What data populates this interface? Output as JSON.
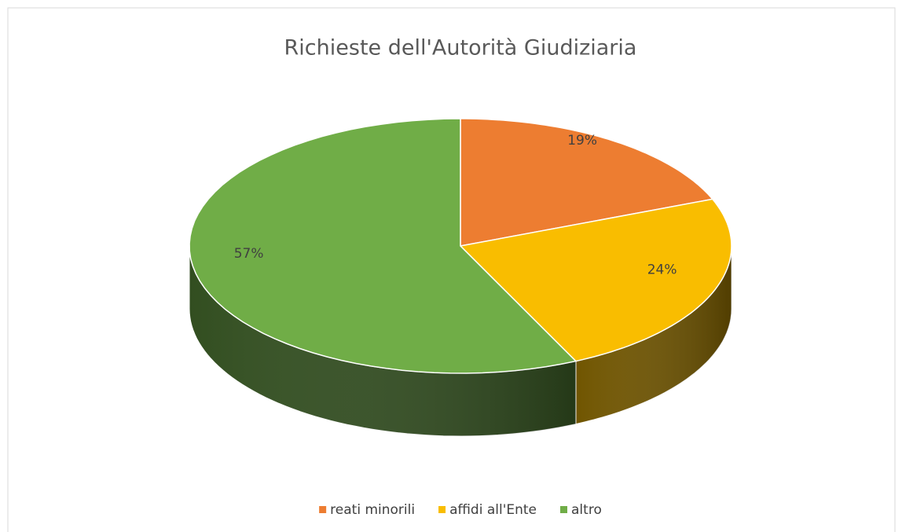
{
  "chart_data": {
    "type": "pie",
    "title": "Richieste dell'Autorità Giudiziaria",
    "categories": [
      "reati minorili",
      "affidi all'Ente",
      "altro"
    ],
    "values": [
      19,
      24,
      57
    ],
    "value_labels": [
      "19%",
      "24%",
      "57%"
    ],
    "colors": [
      "#ed7d31",
      "#f9bd00",
      "#70ad47"
    ],
    "legend": "bottom"
  }
}
